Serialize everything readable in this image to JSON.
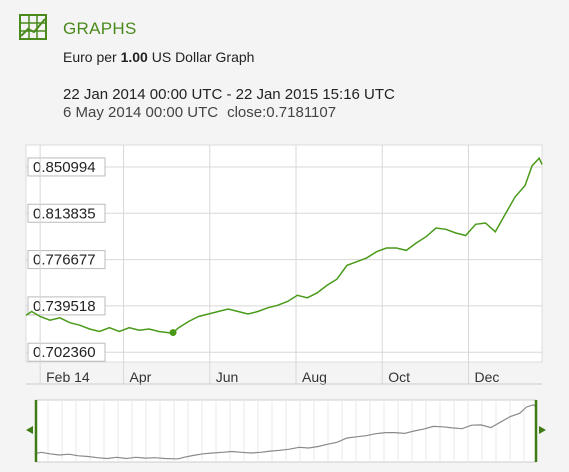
{
  "header": {
    "title": "GRAPHS",
    "icon": "chart-grid-icon"
  },
  "subtitle": {
    "prefix": "Euro per ",
    "amount": "1.00",
    "suffix": " US Dollar Graph"
  },
  "date_range": "22 Jan 2014 00:00 UTC - 22 Jan 2015 15:16 UTC",
  "cursor": {
    "date": "6 May 2014 00:00 UTC",
    "close": "close:0.7181107"
  },
  "colors": {
    "line": "#4a9a1a",
    "navigator_line": "#8a8a8a",
    "handle": "#3f7a14",
    "grid": "#d8d8d8",
    "title": "#4a8a1c"
  },
  "chart_data": {
    "type": "line",
    "ylim": [
      0.6945,
      0.8686
    ],
    "yticks": [
      "0.850994",
      "0.813835",
      "0.776677",
      "0.739518",
      "0.702360"
    ],
    "ytick_values": [
      0.850994,
      0.813835,
      0.776677,
      0.739518,
      0.70236
    ],
    "xticks": [
      "Feb 14",
      "Apr",
      "Jun",
      "Aug",
      "Oct",
      "Dec"
    ],
    "xtick_dates": [
      "2014-02-01",
      "2014-04-01",
      "2014-06-01",
      "2014-08-01",
      "2014-10-01",
      "2014-12-01"
    ],
    "x_range": [
      "2014-01-22",
      "2015-01-22"
    ],
    "grid": true,
    "highlight": {
      "x": "2014-05-06",
      "y": 0.7181107
    },
    "series": [
      {
        "x": [
          "2014-01-22",
          "2014-01-26",
          "2014-02-01",
          "2014-02-08",
          "2014-02-15",
          "2014-02-22",
          "2014-03-01",
          "2014-03-08",
          "2014-03-15",
          "2014-03-22",
          "2014-03-29",
          "2014-04-05",
          "2014-04-12",
          "2014-04-19",
          "2014-04-26",
          "2014-05-03",
          "2014-05-06",
          "2014-05-10",
          "2014-05-17",
          "2014-05-24",
          "2014-05-31",
          "2014-06-07",
          "2014-06-14",
          "2014-06-21",
          "2014-06-28",
          "2014-07-05",
          "2014-07-12",
          "2014-07-19",
          "2014-07-26",
          "2014-08-02",
          "2014-08-09",
          "2014-08-16",
          "2014-08-23",
          "2014-08-30",
          "2014-09-06",
          "2014-09-13",
          "2014-09-20",
          "2014-09-27",
          "2014-10-04",
          "2014-10-11",
          "2014-10-18",
          "2014-10-25",
          "2014-11-01",
          "2014-11-08",
          "2014-11-15",
          "2014-11-22",
          "2014-11-29",
          "2014-12-06",
          "2014-12-13",
          "2014-12-20",
          "2014-12-27",
          "2015-01-03",
          "2015-01-10",
          "2015-01-15",
          "2015-01-20",
          "2015-01-22"
        ],
        "y": [
          0.732,
          0.735,
          0.731,
          0.728,
          0.73,
          0.726,
          0.724,
          0.721,
          0.719,
          0.722,
          0.719,
          0.722,
          0.72,
          0.721,
          0.719,
          0.718,
          0.7181,
          0.722,
          0.727,
          0.731,
          0.733,
          0.735,
          0.737,
          0.735,
          0.733,
          0.735,
          0.738,
          0.74,
          0.743,
          0.748,
          0.746,
          0.75,
          0.756,
          0.761,
          0.772,
          0.775,
          0.778,
          0.783,
          0.786,
          0.786,
          0.784,
          0.79,
          0.795,
          0.802,
          0.801,
          0.798,
          0.796,
          0.805,
          0.806,
          0.799,
          0.813,
          0.827,
          0.836,
          0.852,
          0.858,
          0.853
        ]
      }
    ]
  }
}
